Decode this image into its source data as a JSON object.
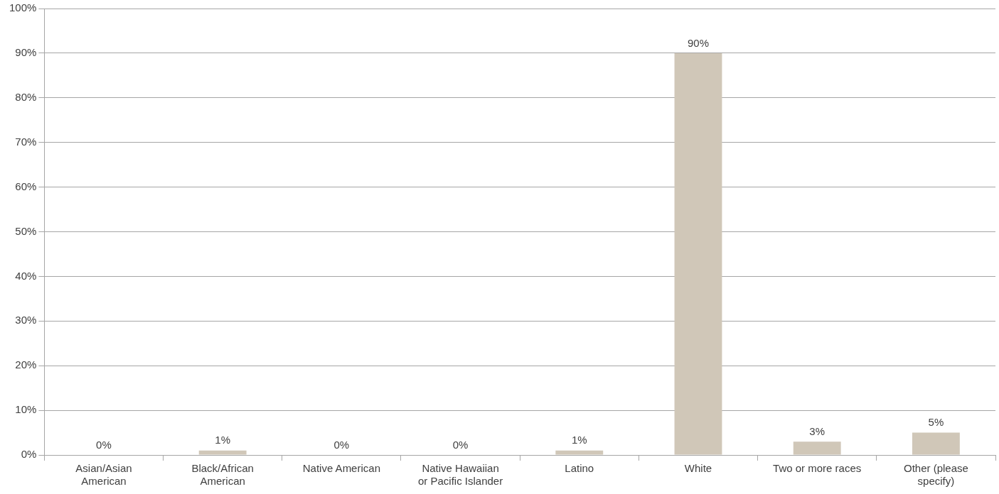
{
  "chart_data": {
    "type": "bar",
    "categories": [
      "Asian/Asian American",
      "Black/African American",
      "Native American",
      "Native Hawaiian or Pacific Islander",
      "Latino",
      "White",
      "Two or more races",
      "Other (please specify)"
    ],
    "values": [
      0,
      1,
      0,
      0,
      1,
      90,
      3,
      5
    ],
    "value_labels": [
      "0%",
      "1%",
      "0%",
      "0%",
      "1%",
      "90%",
      "3%",
      "5%"
    ],
    "color": "#d0c7b8",
    "ylim": [
      0,
      100
    ],
    "yticks": [
      {
        "value": 0,
        "label": "0%"
      },
      {
        "value": 10,
        "label": "10%"
      },
      {
        "value": 20,
        "label": "20%"
      },
      {
        "value": 30,
        "label": "30%"
      },
      {
        "value": 40,
        "label": "40%"
      },
      {
        "value": 50,
        "label": "50%"
      },
      {
        "value": 60,
        "label": "60%"
      },
      {
        "value": 70,
        "label": "70%"
      },
      {
        "value": 80,
        "label": "80%"
      },
      {
        "value": 90,
        "label": "90%"
      },
      {
        "value": 100,
        "label": "100%"
      }
    ],
    "grid": "y"
  }
}
